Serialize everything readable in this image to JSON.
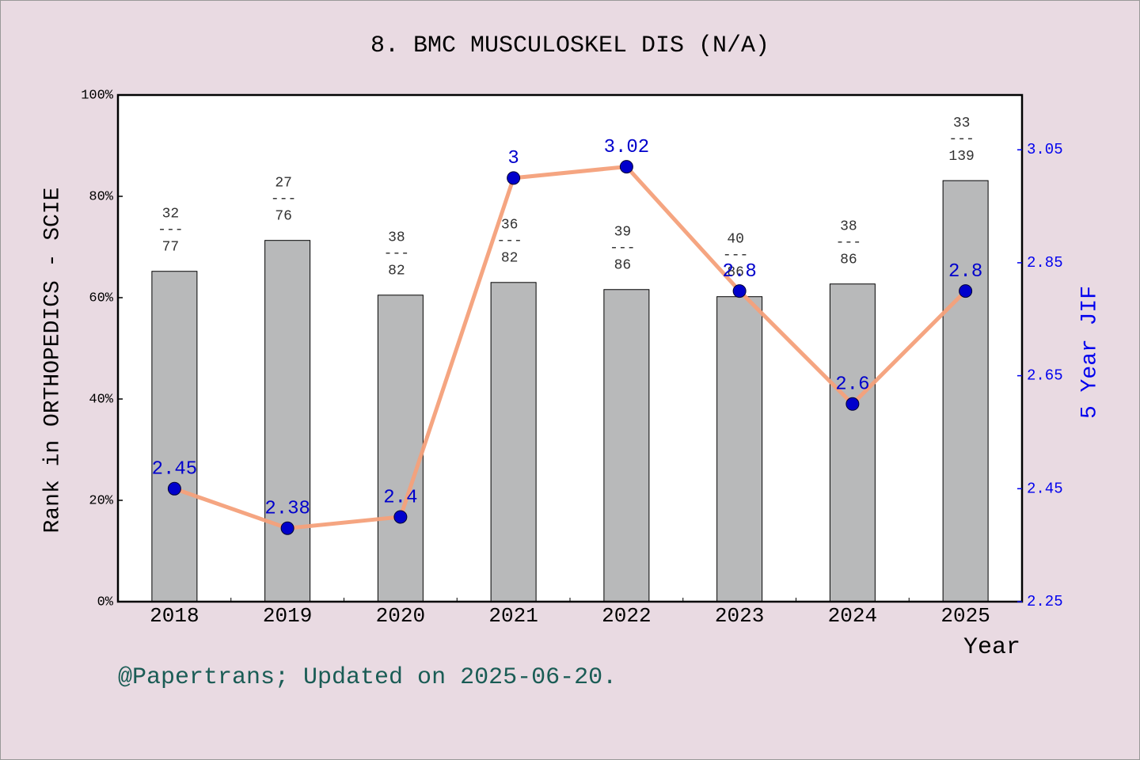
{
  "chart_data": {
    "type": "bar_line",
    "title": "8. BMC MUSCULOSKEL DIS (N/A)",
    "x_label": "Year",
    "y_label": "Rank in ORTHOPEDICS - SCIE",
    "y2_label": "5 Year JIF",
    "footer": "@Papertrans; Updated on 2025-06-20.",
    "categories": [
      "2018",
      "2019",
      "2020",
      "2021",
      "2022",
      "2023",
      "2024",
      "2025"
    ],
    "series": [
      {
        "type": "bar",
        "color": "#b8b9ba",
        "values": [
          65.2,
          71.3,
          60.5,
          63.0,
          61.6,
          60.2,
          62.7,
          83.1
        ],
        "ranks": [
          32,
          27,
          38,
          36,
          39,
          40,
          38,
          33
        ],
        "totals": [
          77,
          76,
          82,
          82,
          86,
          86,
          86,
          139
        ],
        "rank_separator": "---"
      },
      {
        "type": "line",
        "axis": "y2",
        "color": "#f4a07a",
        "marker_color": "#0000cc",
        "values": [
          2.45,
          2.38,
          2.4,
          3,
          3.02,
          2.8,
          2.6,
          2.8
        ]
      }
    ],
    "ylim": [
      0,
      100
    ],
    "yticks": [
      {
        "value": 0,
        "label": "0%"
      },
      {
        "value": 20,
        "label": "20%"
      },
      {
        "value": 40,
        "label": "40%"
      },
      {
        "value": 60,
        "label": "60%"
      },
      {
        "value": 80,
        "label": "80%"
      },
      {
        "value": 100,
        "label": "100%"
      }
    ],
    "y2lim": [
      2.25,
      3.147
    ],
    "y2ticks": [
      2.25,
      2.45,
      2.65,
      2.85,
      3.05
    ]
  }
}
